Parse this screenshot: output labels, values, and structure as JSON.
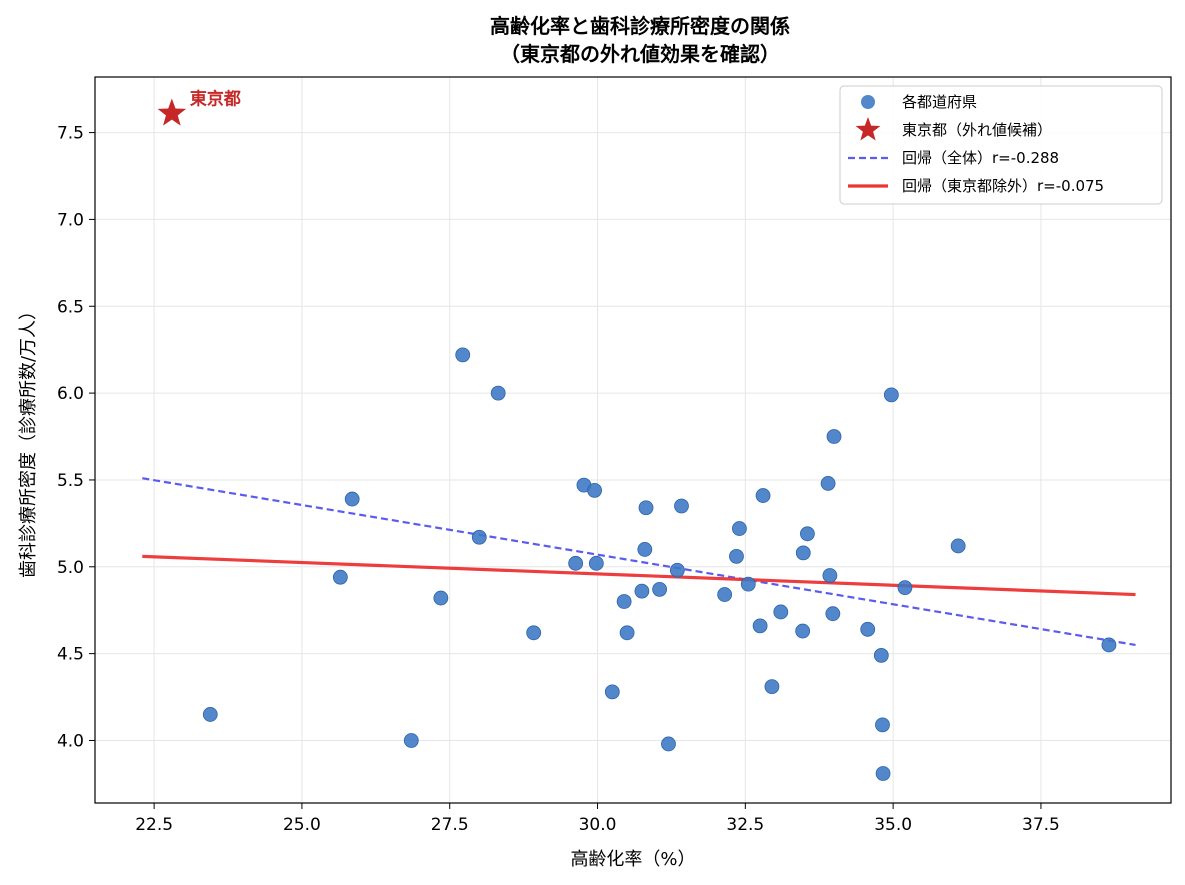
{
  "chart_data": {
    "type": "scatter",
    "title": "高齢化率と歯科診療所密度の関係",
    "subtitle": "（東京都の外れ値効果を確認）",
    "xlabel": "高齢化率（%）",
    "ylabel": "歯科診療所密度（診療所数/万人）",
    "xlim": [
      21.5,
      39.7
    ],
    "ylim": [
      3.64,
      7.82
    ],
    "xticks": [
      22.5,
      25.0,
      27.5,
      30.0,
      32.5,
      35.0,
      37.5
    ],
    "xtick_labels": [
      "22.5",
      "25.0",
      "27.5",
      "30.0",
      "32.5",
      "35.0",
      "37.5"
    ],
    "yticks": [
      4.0,
      4.5,
      5.0,
      5.5,
      6.0,
      6.5,
      7.0,
      7.5
    ],
    "ytick_labels": [
      "4.0",
      "4.5",
      "5.0",
      "5.5",
      "6.0",
      "6.5",
      "7.0",
      "7.5"
    ],
    "grid": true,
    "legend_position": "top-right",
    "series": [
      {
        "name": "各都道府県",
        "kind": "scatter",
        "color": "#3a78c4",
        "points": [
          [
            23.45,
            4.15
          ],
          [
            25.65,
            4.94
          ],
          [
            25.85,
            5.39
          ],
          [
            26.85,
            4.0
          ],
          [
            27.35,
            4.82
          ],
          [
            27.72,
            6.22
          ],
          [
            28.0,
            5.17
          ],
          [
            28.32,
            6.0
          ],
          [
            28.92,
            4.62
          ],
          [
            29.63,
            5.02
          ],
          [
            29.77,
            5.47
          ],
          [
            29.95,
            5.44
          ],
          [
            29.98,
            5.02
          ],
          [
            30.25,
            4.28
          ],
          [
            30.45,
            4.8
          ],
          [
            30.5,
            4.62
          ],
          [
            30.75,
            4.86
          ],
          [
            30.8,
            5.1
          ],
          [
            30.82,
            5.34
          ],
          [
            31.05,
            4.87
          ],
          [
            31.2,
            3.98
          ],
          [
            31.35,
            4.98
          ],
          [
            31.42,
            5.35
          ],
          [
            32.15,
            4.84
          ],
          [
            32.35,
            5.06
          ],
          [
            32.4,
            5.22
          ],
          [
            32.55,
            4.9
          ],
          [
            32.75,
            4.66
          ],
          [
            32.8,
            5.41
          ],
          [
            32.95,
            4.31
          ],
          [
            33.1,
            4.74
          ],
          [
            33.47,
            4.63
          ],
          [
            33.48,
            5.08
          ],
          [
            33.55,
            5.19
          ],
          [
            33.9,
            5.48
          ],
          [
            33.93,
            4.95
          ],
          [
            33.98,
            4.73
          ],
          [
            34.0,
            5.75
          ],
          [
            34.57,
            4.64
          ],
          [
            34.8,
            4.49
          ],
          [
            34.82,
            4.09
          ],
          [
            34.83,
            3.81
          ],
          [
            34.97,
            5.99
          ],
          [
            35.2,
            4.88
          ],
          [
            36.1,
            5.12
          ],
          [
            38.65,
            4.55
          ]
        ]
      },
      {
        "name": "東京都（外れ値候補）",
        "kind": "star",
        "color": "#c62828",
        "points": [
          [
            22.8,
            7.61
          ]
        ]
      },
      {
        "name": "回帰（全体）r=-0.288",
        "kind": "dashed-line",
        "color": "#5b5bf0",
        "points": [
          [
            22.3,
            5.51
          ],
          [
            39.1,
            4.55
          ]
        ]
      },
      {
        "name": "回帰（東京都除外）r=-0.075",
        "kind": "solid-line",
        "color": "#ee3333",
        "points": [
          [
            22.3,
            5.06
          ],
          [
            39.1,
            4.84
          ]
        ]
      }
    ],
    "annotations": [
      {
        "text": "東京都",
        "x": 22.8,
        "y": 7.61,
        "color": "#c62828"
      }
    ]
  }
}
